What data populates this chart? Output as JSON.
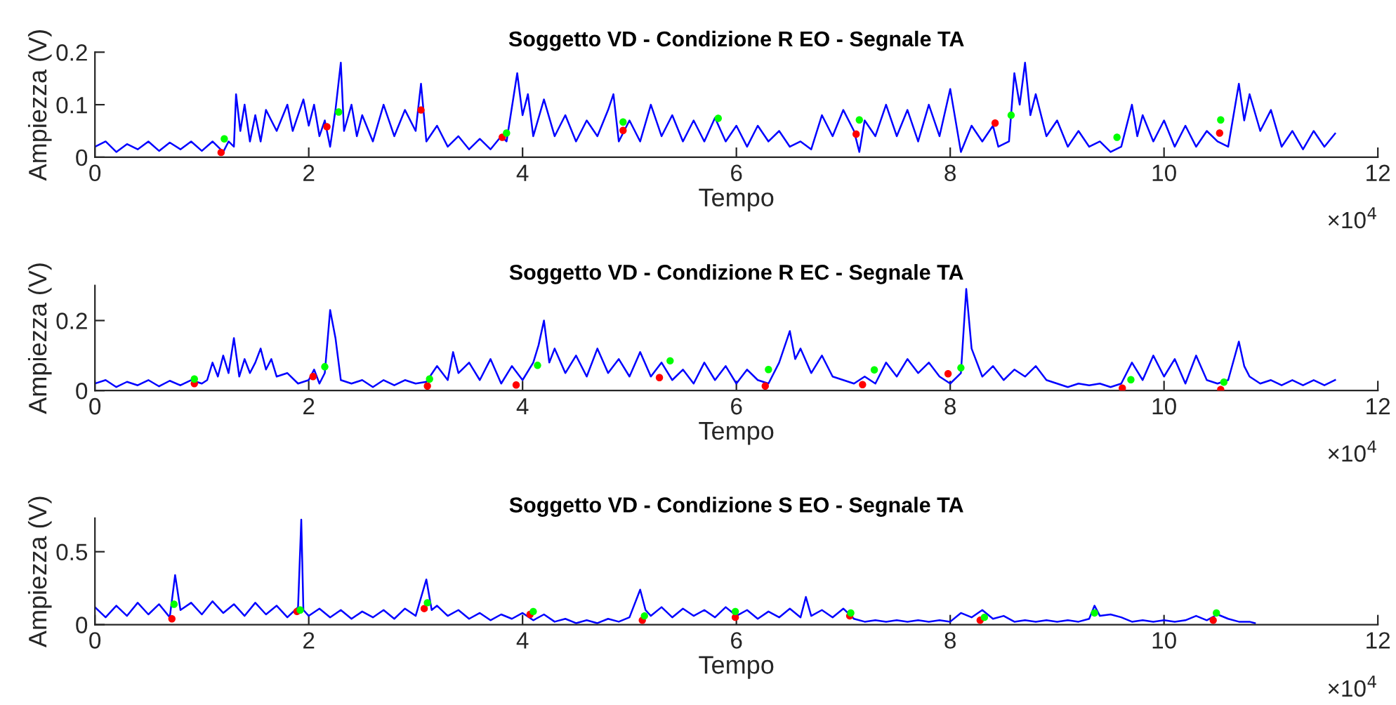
{
  "chart_data": [
    {
      "type": "line",
      "title": "Soggetto VD - Condizione R EO - Segnale TA",
      "xlabel": "Tempo",
      "ylabel": "Ampiezza (V)",
      "annotations": [
        "×10$^{4}$"
      ],
      "xlim": [
        0,
        12
      ],
      "xticks": [
        0,
        2,
        4,
        6,
        8,
        10,
        12
      ],
      "ylim": [
        0,
        0.2
      ],
      "yticks": [
        0,
        0.1,
        0.2
      ],
      "grid": false,
      "legend": false,
      "series": [
        {
          "color": "#0000ff",
          "line_style": "solid",
          "marker": "none",
          "x": [
            0,
            0.1,
            0.2,
            0.3,
            0.4,
            0.5,
            0.6,
            0.7,
            0.8,
            0.9,
            1.0,
            1.1,
            1.2,
            1.25,
            1.3,
            1.32,
            1.36,
            1.4,
            1.45,
            1.5,
            1.55,
            1.6,
            1.7,
            1.8,
            1.85,
            1.9,
            1.95,
            2.0,
            2.05,
            2.1,
            2.15,
            2.2,
            2.25,
            2.3,
            2.33,
            2.4,
            2.45,
            2.5,
            2.6,
            2.7,
            2.8,
            2.9,
            3.0,
            3.05,
            3.1,
            3.2,
            3.3,
            3.4,
            3.5,
            3.6,
            3.7,
            3.8,
            3.85,
            3.95,
            4.0,
            4.05,
            4.1,
            4.2,
            4.3,
            4.4,
            4.5,
            4.6,
            4.7,
            4.8,
            4.85,
            4.9,
            5.0,
            5.1,
            5.2,
            5.3,
            5.4,
            5.5,
            5.6,
            5.7,
            5.8,
            5.9,
            6.0,
            6.1,
            6.2,
            6.3,
            6.4,
            6.5,
            6.6,
            6.7,
            6.8,
            6.9,
            7.0,
            7.1,
            7.15,
            7.2,
            7.3,
            7.4,
            7.5,
            7.6,
            7.7,
            7.8,
            7.9,
            8.0,
            8.1,
            8.2,
            8.3,
            8.4,
            8.45,
            8.55,
            8.6,
            8.65,
            8.7,
            8.75,
            8.8,
            8.9,
            9.0,
            9.1,
            9.2,
            9.3,
            9.4,
            9.5,
            9.6,
            9.7,
            9.75,
            9.8,
            9.9,
            10.0,
            10.1,
            10.2,
            10.3,
            10.4,
            10.5,
            10.6,
            10.7,
            10.75,
            10.8,
            10.9,
            11.0,
            11.1,
            11.2,
            11.3,
            11.4,
            11.5,
            11.6
          ],
          "values": [
            0.02,
            0.03,
            0.01,
            0.025,
            0.015,
            0.03,
            0.012,
            0.028,
            0.015,
            0.03,
            0.012,
            0.03,
            0.01,
            0.03,
            0.02,
            0.12,
            0.05,
            0.1,
            0.03,
            0.08,
            0.03,
            0.09,
            0.05,
            0.1,
            0.05,
            0.08,
            0.11,
            0.06,
            0.1,
            0.04,
            0.07,
            0.02,
            0.09,
            0.18,
            0.05,
            0.1,
            0.04,
            0.08,
            0.03,
            0.1,
            0.04,
            0.09,
            0.05,
            0.14,
            0.03,
            0.06,
            0.02,
            0.04,
            0.015,
            0.035,
            0.015,
            0.04,
            0.03,
            0.16,
            0.08,
            0.12,
            0.04,
            0.11,
            0.04,
            0.08,
            0.03,
            0.07,
            0.04,
            0.09,
            0.12,
            0.03,
            0.07,
            0.03,
            0.1,
            0.04,
            0.08,
            0.03,
            0.07,
            0.03,
            0.075,
            0.03,
            0.06,
            0.02,
            0.06,
            0.03,
            0.05,
            0.02,
            0.03,
            0.015,
            0.08,
            0.04,
            0.09,
            0.05,
            0.01,
            0.07,
            0.04,
            0.1,
            0.04,
            0.09,
            0.03,
            0.1,
            0.04,
            0.13,
            0.01,
            0.06,
            0.03,
            0.06,
            0.02,
            0.03,
            0.16,
            0.1,
            0.18,
            0.08,
            0.12,
            0.04,
            0.07,
            0.02,
            0.05,
            0.02,
            0.03,
            0.01,
            0.02,
            0.1,
            0.04,
            0.08,
            0.03,
            0.07,
            0.02,
            0.06,
            0.02,
            0.05,
            0.03,
            0.02,
            0.14,
            0.07,
            0.12,
            0.05,
            0.09,
            0.02,
            0.05,
            0.015,
            0.05,
            0.02,
            0.045
          ]
        },
        {
          "type": "scatter",
          "color": "#ff0000",
          "marker": "circle",
          "x": [
            1.18,
            2.17,
            3.05,
            3.81,
            4.94,
            7.12,
            8.42,
            10.52
          ],
          "values": [
            0.009,
            0.058,
            0.09,
            0.038,
            0.051,
            0.044,
            0.065,
            0.046
          ]
        },
        {
          "type": "scatter",
          "color": "#00ff00",
          "marker": "circle",
          "x": [
            1.21,
            2.28,
            3.85,
            4.94,
            5.83,
            7.15,
            8.57,
            9.56,
            10.53
          ],
          "values": [
            0.035,
            0.086,
            0.046,
            0.067,
            0.074,
            0.071,
            0.08,
            0.038,
            0.071
          ]
        }
      ]
    },
    {
      "type": "line",
      "title": "Soggetto VD - Condizione R EC - Segnale TA",
      "xlabel": "Tempo",
      "ylabel": "Ampiezza (V)",
      "annotations": [
        "×10$^{4}$"
      ],
      "xlim": [
        0,
        12
      ],
      "xticks": [
        0,
        2,
        4,
        6,
        8,
        10,
        12
      ],
      "ylim": [
        0,
        0.3
      ],
      "yticks": [
        0,
        0.2
      ],
      "grid": false,
      "legend": false,
      "series": [
        {
          "color": "#0000ff",
          "line_style": "solid",
          "marker": "none",
          "x": [
            0,
            0.1,
            0.2,
            0.3,
            0.4,
            0.5,
            0.6,
            0.7,
            0.8,
            0.9,
            1.0,
            1.05,
            1.1,
            1.15,
            1.2,
            1.25,
            1.3,
            1.35,
            1.4,
            1.45,
            1.5,
            1.55,
            1.6,
            1.65,
            1.7,
            1.8,
            1.9,
            2.0,
            2.05,
            2.1,
            2.15,
            2.2,
            2.25,
            2.3,
            2.4,
            2.5,
            2.6,
            2.7,
            2.8,
            2.9,
            3.0,
            3.1,
            3.2,
            3.3,
            3.35,
            3.4,
            3.5,
            3.6,
            3.7,
            3.8,
            3.9,
            4.0,
            4.1,
            4.15,
            4.2,
            4.25,
            4.3,
            4.4,
            4.5,
            4.6,
            4.7,
            4.8,
            4.9,
            5.0,
            5.1,
            5.2,
            5.3,
            5.4,
            5.5,
            5.6,
            5.7,
            5.8,
            5.9,
            6.0,
            6.1,
            6.2,
            6.3,
            6.4,
            6.5,
            6.55,
            6.6,
            6.7,
            6.8,
            6.9,
            7.0,
            7.1,
            7.2,
            7.3,
            7.4,
            7.5,
            7.6,
            7.7,
            7.8,
            7.9,
            8.0,
            8.1,
            8.15,
            8.2,
            8.3,
            8.4,
            8.5,
            8.6,
            8.7,
            8.8,
            8.9,
            9.0,
            9.1,
            9.2,
            9.3,
            9.4,
            9.5,
            9.6,
            9.7,
            9.8,
            9.9,
            10.0,
            10.1,
            10.2,
            10.3,
            10.4,
            10.5,
            10.6,
            10.7,
            10.75,
            10.8,
            10.9,
            11.0,
            11.1,
            11.2,
            11.3,
            11.4,
            11.5,
            11.6
          ],
          "values": [
            0.02,
            0.03,
            0.01,
            0.025,
            0.015,
            0.03,
            0.012,
            0.028,
            0.015,
            0.03,
            0.02,
            0.03,
            0.08,
            0.04,
            0.1,
            0.05,
            0.15,
            0.04,
            0.09,
            0.05,
            0.08,
            0.12,
            0.06,
            0.09,
            0.04,
            0.05,
            0.02,
            0.03,
            0.06,
            0.02,
            0.05,
            0.23,
            0.15,
            0.03,
            0.02,
            0.03,
            0.01,
            0.03,
            0.015,
            0.03,
            0.02,
            0.025,
            0.07,
            0.03,
            0.11,
            0.05,
            0.08,
            0.03,
            0.09,
            0.02,
            0.07,
            0.03,
            0.08,
            0.13,
            0.2,
            0.08,
            0.12,
            0.05,
            0.1,
            0.04,
            0.12,
            0.05,
            0.09,
            0.04,
            0.11,
            0.04,
            0.08,
            0.03,
            0.06,
            0.02,
            0.08,
            0.03,
            0.07,
            0.02,
            0.06,
            0.03,
            0.02,
            0.08,
            0.17,
            0.09,
            0.12,
            0.05,
            0.1,
            0.04,
            0.03,
            0.02,
            0.04,
            0.02,
            0.08,
            0.04,
            0.09,
            0.05,
            0.08,
            0.04,
            0.02,
            0.05,
            0.29,
            0.12,
            0.04,
            0.07,
            0.03,
            0.06,
            0.04,
            0.07,
            0.03,
            0.02,
            0.01,
            0.02,
            0.015,
            0.02,
            0.01,
            0.02,
            0.08,
            0.03,
            0.1,
            0.04,
            0.09,
            0.02,
            0.1,
            0.03,
            0.02,
            0.03,
            0.14,
            0.07,
            0.04,
            0.02,
            0.03,
            0.015,
            0.03,
            0.015,
            0.03,
            0.015,
            0.03
          ]
        },
        {
          "type": "scatter",
          "color": "#ff0000",
          "marker": "circle",
          "x": [
            0.93,
            2.04,
            3.11,
            3.94,
            5.28,
            6.27,
            7.18,
            7.98,
            9.61,
            10.53
          ],
          "values": [
            0.02,
            0.04,
            0.013,
            0.016,
            0.037,
            0.013,
            0.017,
            0.048,
            0.007,
            0.003
          ]
        },
        {
          "type": "scatter",
          "color": "#00ff00",
          "marker": "circle",
          "x": [
            0.93,
            2.15,
            3.13,
            4.14,
            5.38,
            6.3,
            7.29,
            8.1,
            9.69,
            10.56
          ],
          "values": [
            0.033,
            0.068,
            0.033,
            0.072,
            0.085,
            0.06,
            0.059,
            0.065,
            0.031,
            0.024
          ]
        }
      ]
    },
    {
      "type": "line",
      "title": "Soggetto VD - Condizione S EO - Segnale TA",
      "xlabel": "Tempo",
      "ylabel": "Ampiezza (V)",
      "annotations": [
        "×10$^{4}$"
      ],
      "xlim": [
        0,
        12
      ],
      "xticks": [
        0,
        2,
        4,
        6,
        8,
        10,
        12
      ],
      "ylim": [
        0,
        0.73
      ],
      "yticks": [
        0,
        0.5
      ],
      "grid": false,
      "legend": false,
      "series": [
        {
          "color": "#0000ff",
          "line_style": "solid",
          "marker": "none",
          "x": [
            0,
            0.1,
            0.2,
            0.3,
            0.4,
            0.5,
            0.6,
            0.7,
            0.75,
            0.8,
            0.9,
            1.0,
            1.1,
            1.2,
            1.3,
            1.4,
            1.5,
            1.6,
            1.7,
            1.8,
            1.9,
            1.93,
            1.95,
            2.0,
            2.1,
            2.2,
            2.3,
            2.4,
            2.5,
            2.6,
            2.7,
            2.8,
            2.9,
            3.0,
            3.1,
            3.15,
            3.2,
            3.3,
            3.4,
            3.5,
            3.6,
            3.7,
            3.8,
            3.9,
            4.0,
            4.1,
            4.2,
            4.3,
            4.4,
            4.5,
            4.6,
            4.7,
            4.8,
            4.9,
            5.0,
            5.1,
            5.15,
            5.2,
            5.3,
            5.4,
            5.5,
            5.6,
            5.7,
            5.8,
            5.9,
            6.0,
            6.1,
            6.2,
            6.3,
            6.4,
            6.5,
            6.6,
            6.65,
            6.7,
            6.8,
            6.9,
            7.0,
            7.1,
            7.2,
            7.3,
            7.4,
            7.5,
            7.6,
            7.7,
            7.8,
            7.9,
            8.0,
            8.1,
            8.2,
            8.3,
            8.4,
            8.5,
            8.6,
            8.7,
            8.8,
            8.9,
            9.0,
            9.1,
            9.2,
            9.3,
            9.35,
            9.4,
            9.5,
            9.6,
            9.7,
            9.8,
            9.9,
            10.0,
            10.1,
            10.2,
            10.3,
            10.4,
            10.5,
            10.6,
            10.7,
            10.8,
            10.85
          ],
          "values": [
            0.12,
            0.05,
            0.13,
            0.06,
            0.15,
            0.07,
            0.14,
            0.05,
            0.34,
            0.1,
            0.15,
            0.07,
            0.16,
            0.08,
            0.14,
            0.06,
            0.15,
            0.07,
            0.13,
            0.05,
            0.12,
            0.72,
            0.1,
            0.06,
            0.11,
            0.05,
            0.1,
            0.04,
            0.09,
            0.05,
            0.1,
            0.04,
            0.11,
            0.06,
            0.31,
            0.1,
            0.13,
            0.06,
            0.1,
            0.04,
            0.08,
            0.03,
            0.07,
            0.04,
            0.08,
            0.03,
            0.07,
            0.02,
            0.04,
            0.01,
            0.03,
            0.01,
            0.04,
            0.02,
            0.05,
            0.24,
            0.1,
            0.06,
            0.12,
            0.05,
            0.11,
            0.06,
            0.1,
            0.05,
            0.12,
            0.06,
            0.1,
            0.04,
            0.09,
            0.05,
            0.11,
            0.05,
            0.19,
            0.06,
            0.1,
            0.05,
            0.11,
            0.04,
            0.02,
            0.03,
            0.02,
            0.03,
            0.02,
            0.03,
            0.02,
            0.03,
            0.02,
            0.08,
            0.05,
            0.1,
            0.04,
            0.06,
            0.02,
            0.03,
            0.02,
            0.03,
            0.02,
            0.03,
            0.02,
            0.04,
            0.13,
            0.06,
            0.07,
            0.05,
            0.02,
            0.03,
            0.02,
            0.03,
            0.02,
            0.03,
            0.06,
            0.03,
            0.07,
            0.04,
            0.02,
            0.02,
            0.01
          ]
        },
        {
          "type": "scatter",
          "color": "#ff0000",
          "marker": "circle",
          "x": [
            0.72,
            1.89,
            3.08,
            4.07,
            5.12,
            5.99,
            7.06,
            8.28,
            10.46
          ],
          "values": [
            0.04,
            0.09,
            0.11,
            0.07,
            0.03,
            0.05,
            0.06,
            0.03,
            0.03
          ]
        },
        {
          "type": "scatter",
          "color": "#00ff00",
          "marker": "circle",
          "x": [
            0.74,
            1.92,
            3.11,
            4.1,
            5.14,
            5.99,
            7.07,
            8.32,
            9.35,
            10.49
          ],
          "values": [
            0.14,
            0.1,
            0.15,
            0.09,
            0.06,
            0.09,
            0.08,
            0.05,
            0.08,
            0.08
          ]
        }
      ]
    }
  ]
}
